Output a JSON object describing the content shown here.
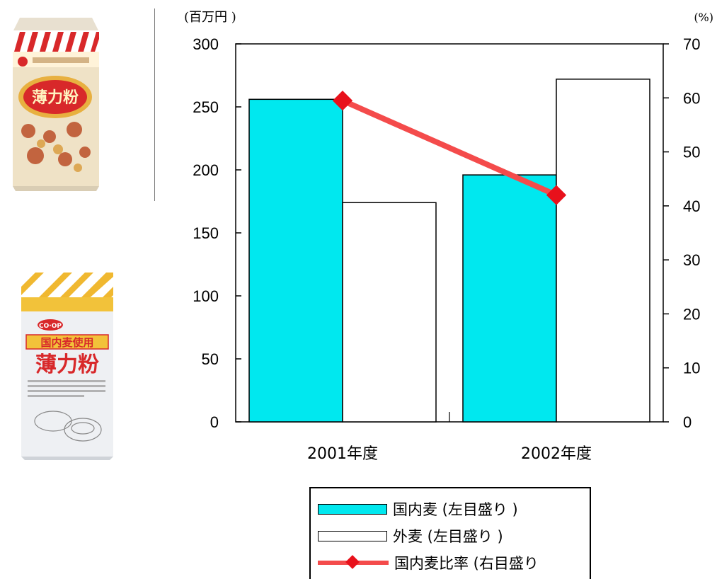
{
  "colors": {
    "domestic": "#00e8ef",
    "foreign": "#ffffff",
    "ratio": "#f44b4b",
    "ratio_marker": "#e8111b"
  },
  "images": [
    {
      "name": "flour-package-red",
      "text": "薄力粉"
    },
    {
      "name": "flour-package-coop",
      "brand": "CO·OP",
      "banner": "国内麦使用",
      "text": "薄力粉"
    }
  ],
  "chart_data": {
    "type": "bar",
    "categories": [
      "2001年度",
      "2002年度"
    ],
    "series": [
      {
        "name": "国内麦 (左目盛り )",
        "axis": "left",
        "values": [
          256,
          196
        ]
      },
      {
        "name": "外麦 (左目盛り )",
        "axis": "left",
        "values": [
          174,
          272
        ]
      },
      {
        "name": "国内麦比率 (右目盛り",
        "axis": "right",
        "type": "line",
        "marker": "diamond",
        "values": [
          59.5,
          42
        ]
      }
    ],
    "left_axis": {
      "unit": "(百万円 )",
      "ylim": [
        0,
        300
      ],
      "ticks": [
        "0",
        "50",
        "100",
        "150",
        "200",
        "250",
        "300"
      ]
    },
    "right_axis": {
      "unit": "(%)",
      "ylim": [
        0,
        70
      ],
      "ticks": [
        "0",
        "10",
        "20",
        "30",
        "40",
        "50",
        "60",
        "70"
      ]
    },
    "title": "",
    "grid": false,
    "legend_position": "bottom"
  }
}
